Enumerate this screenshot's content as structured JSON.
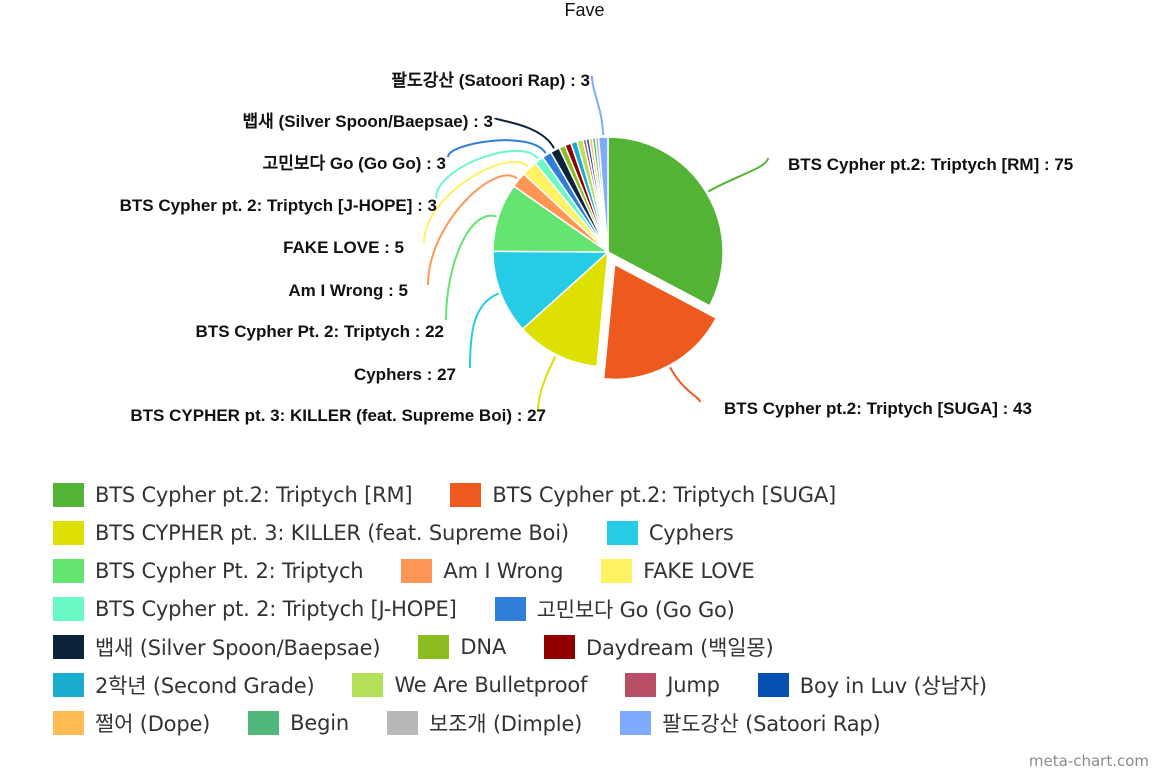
{
  "chart_data": {
    "type": "pie",
    "title": "Fave",
    "label_format": "{name} : {value}",
    "exploded_slice": "BTS Cypher pt.2: Triptych [SUGA]",
    "legend_position": "bottom",
    "slices": [
      {
        "name": "BTS Cypher pt.2: Triptych [RM]",
        "value": 75,
        "color": "#52B335"
      },
      {
        "name": "BTS Cypher pt.2: Triptych [SUGA]",
        "value": 43,
        "color": "#EE5A1E"
      },
      {
        "name": "BTS CYPHER pt. 3: KILLER (feat. Supreme Boi)",
        "value": 27,
        "color": "#DDE000"
      },
      {
        "name": "Cyphers",
        "value": 27,
        "color": "#26CCE5"
      },
      {
        "name": "BTS Cypher Pt. 2: Triptych",
        "value": 22,
        "color": "#64E572"
      },
      {
        "name": "Am I Wrong",
        "value": 5,
        "color": "#FF9655"
      },
      {
        "name": "FAKE LOVE",
        "value": 5,
        "color": "#FFF263"
      },
      {
        "name": "BTS Cypher pt. 2: Triptych [J-HOPE]",
        "value": 3,
        "color": "#6AF9C4"
      },
      {
        "name": "고민보다 Go (Go Go)",
        "value": 3,
        "color": "#2F7ED8"
      },
      {
        "name": "뱁새 (Silver Spoon/Baepsae)",
        "value": 3,
        "color": "#0D233A"
      },
      {
        "name": "DNA",
        "value": 2,
        "color": "#8BBC21"
      },
      {
        "name": "Daydream (백일몽)",
        "value": 2,
        "color": "#910000"
      },
      {
        "name": "2학년 (Second Grade)",
        "value": 2,
        "color": "#1AADCE"
      },
      {
        "name": "We Are Bulletproof",
        "value": 2,
        "color": "#B5E05A"
      },
      {
        "name": "Jump",
        "value": 1,
        "color": "#B84F66"
      },
      {
        "name": "Boy in Luv (상남자)",
        "value": 1,
        "color": "#0350B0"
      },
      {
        "name": "쩔어 (Dope)",
        "value": 1,
        "color": "#FFBC55"
      },
      {
        "name": "Begin",
        "value": 1,
        "color": "#4FB87A"
      },
      {
        "name": "보조개 (Dimple)",
        "value": 1,
        "color": "#B8B8B8"
      },
      {
        "name": "팔도강산 (Satoori Rap)",
        "value": 3,
        "color": "#7EAAFF"
      }
    ],
    "visible_data_labels": [
      "팔도강산 (Satoori Rap) : 3",
      "뱁새 (Silver Spoon/Baepsae) : 3",
      "고민보다 Go (Go Go) : 3",
      "BTS Cypher pt. 2: Triptych [J-HOPE] : 3",
      "FAKE LOVE : 5",
      "Am I Wrong : 5",
      "BTS Cypher Pt. 2: Triptych : 22",
      "Cyphers : 27",
      "BTS CYPHER pt. 3: KILLER (feat. Supreme Boi) : 27",
      "BTS Cypher pt.2: Triptych [RM] : 75",
      "BTS Cypher pt.2: Triptych [SUGA] : 43"
    ]
  },
  "legend": {
    "rows": [
      [
        0,
        1
      ],
      [
        2,
        3
      ],
      [
        4,
        5,
        6
      ],
      [
        7,
        8
      ],
      [
        9,
        10,
        11
      ],
      [
        12,
        13,
        14,
        15
      ],
      [
        16,
        17,
        18,
        19
      ]
    ]
  },
  "credit": "meta-chart.com"
}
